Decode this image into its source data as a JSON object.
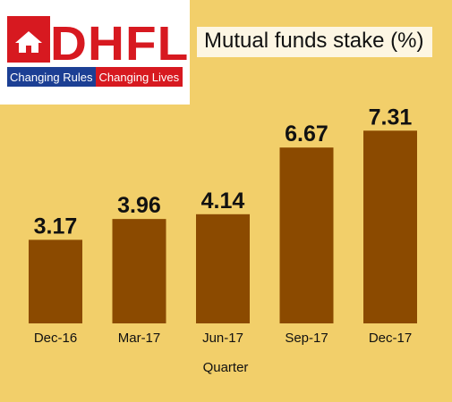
{
  "logo": {
    "wordmark": "DHFL",
    "tagline_left": "Changing Rules",
    "tagline_right": "Changing Lives"
  },
  "title": "Mutual funds stake (%)",
  "colors": {
    "background": "#f2cf6a",
    "bar": "#8b4a00",
    "brand_red": "#d71920",
    "brand_blue": "#1c3f94"
  },
  "chart_data": {
    "type": "bar",
    "title": "Mutual funds stake (%)",
    "xlabel": "Quarter",
    "ylabel": "",
    "categories": [
      "Dec-16",
      "Mar-17",
      "Jun-17",
      "Sep-17",
      "Dec-17"
    ],
    "values": [
      3.17,
      3.96,
      4.14,
      6.67,
      7.31
    ],
    "value_labels": [
      "3.17",
      "3.96",
      "4.14",
      "6.67",
      "7.31"
    ],
    "ylim": [
      0,
      8.2
    ],
    "grid": false,
    "legend": "none"
  }
}
